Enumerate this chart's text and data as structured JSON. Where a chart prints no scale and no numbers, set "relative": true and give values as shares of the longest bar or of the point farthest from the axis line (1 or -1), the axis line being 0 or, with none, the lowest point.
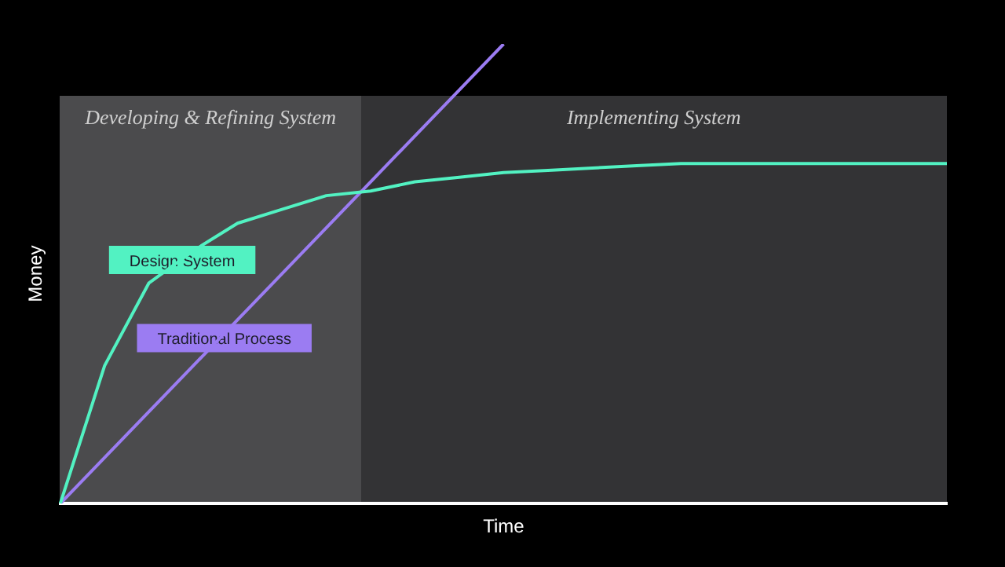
{
  "chart_data": {
    "type": "line",
    "relative": true,
    "xlabel": "Time",
    "ylabel": "Money",
    "tick_labels": false,
    "legend": false,
    "marker": "none",
    "categories": [
      null,
      null,
      null,
      null,
      null,
      null,
      null,
      null,
      null,
      null,
      null,
      null,
      null,
      null,
      null,
      null,
      null,
      null,
      null,
      null,
      null
    ],
    "series": [
      {
        "name": "Design System",
        "color": "#52f2c2",
        "values": [
          0,
          0.3,
          0.48,
          0.55,
          0.61,
          0.64,
          0.67,
          0.68,
          0.7,
          0.71,
          0.72,
          0.725,
          0.73,
          0.735,
          0.74,
          0.74,
          0.74,
          0.74,
          0.74,
          0.74,
          0.74
        ]
      },
      {
        "name": "Traditional Process",
        "color": "#9b7cf2",
        "values": [
          0,
          0.1,
          0.2,
          0.3,
          0.4,
          0.5,
          0.6,
          0.7,
          0.8,
          0.9,
          1,
          null,
          null,
          null,
          null,
          null,
          null,
          null,
          null,
          null,
          null
        ]
      }
    ],
    "annotations": [
      "Developing & Refining System",
      "Implementing System"
    ]
  }
}
